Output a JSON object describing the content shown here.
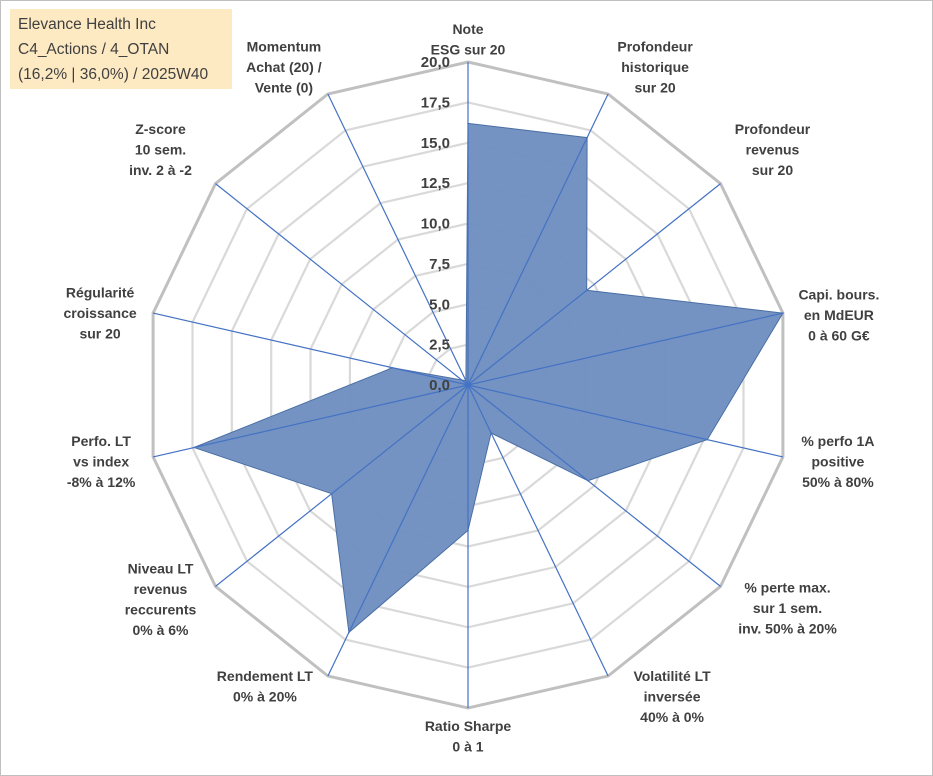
{
  "info": {
    "line1": "Elevance Health Inc",
    "line2": "C4_Actions / 4_OTAN",
    "line3": "(16,2% | 36,0%) / 2025W40"
  },
  "chart_data": {
    "type": "radar",
    "title": "",
    "rmin": 0,
    "rmax": 20,
    "ticks": [
      {
        "value": 0,
        "label": "0,0"
      },
      {
        "value": 2.5,
        "label": "2,5"
      },
      {
        "value": 5,
        "label": "5,0"
      },
      {
        "value": 7.5,
        "label": "7,5"
      },
      {
        "value": 10,
        "label": "10,0"
      },
      {
        "value": 12.5,
        "label": "12,5"
      },
      {
        "value": 15,
        "label": "15,0"
      },
      {
        "value": 17.5,
        "label": "17,5"
      },
      {
        "value": 20,
        "label": "20,0"
      }
    ],
    "axes": [
      {
        "lines": [
          "Note",
          "ESG sur 20"
        ],
        "value": 16.2
      },
      {
        "lines": [
          "Profondeur",
          "historique",
          "sur 20"
        ],
        "value": 17.0
      },
      {
        "lines": [
          "Profondeur",
          "revenus",
          "sur 20"
        ],
        "value": 9.4
      },
      {
        "lines": [
          "Capi. bours.",
          "en MdEUR",
          "0 à 60 G€"
        ],
        "value": 20.0
      },
      {
        "lines": [
          "% perfo 1A",
          "positive",
          "50% à 80%"
        ],
        "value": 15.2
      },
      {
        "lines": [
          "% perte max.",
          "sur 1 sem.",
          "inv. 50% à 20%"
        ],
        "value": 9.5
      },
      {
        "lines": [
          "Volatilité LT",
          "inversée",
          "40% à 0%"
        ],
        "value": 3.3
      },
      {
        "lines": [
          "Ratio Sharpe",
          "0 à 1"
        ],
        "value": 9.0
      },
      {
        "lines": [
          "Rendement LT",
          "0% à 20%"
        ],
        "value": 17.0
      },
      {
        "lines": [
          "Niveau LT",
          "revenus",
          "reccurents",
          "0% à 6%"
        ],
        "value": 10.8
      },
      {
        "lines": [
          "Perfo. LT",
          "vs index",
          "-8% à 12%"
        ],
        "value": 17.4
      },
      {
        "lines": [
          "Régularité",
          "croissance",
          "sur 20"
        ],
        "value": 4.8
      },
      {
        "lines": [
          "Z-score",
          "10 sem.",
          "inv. 2 à -2"
        ],
        "value": 0.5
      },
      {
        "lines": [
          "Momentum",
          "Achat (20) /",
          "Vente (0)"
        ],
        "value": 0.3
      }
    ],
    "series": [
      {
        "name": "Elevance Health Inc"
      }
    ],
    "colors": {
      "fill": "#6e8fbf",
      "stroke": "#4a6fa5",
      "grid_outer": "#c0c0c0",
      "grid_inner": "#d9d9d9",
      "spoke": "#4472c4",
      "text": "#404040",
      "info_bg": "#fde9c2"
    }
  }
}
